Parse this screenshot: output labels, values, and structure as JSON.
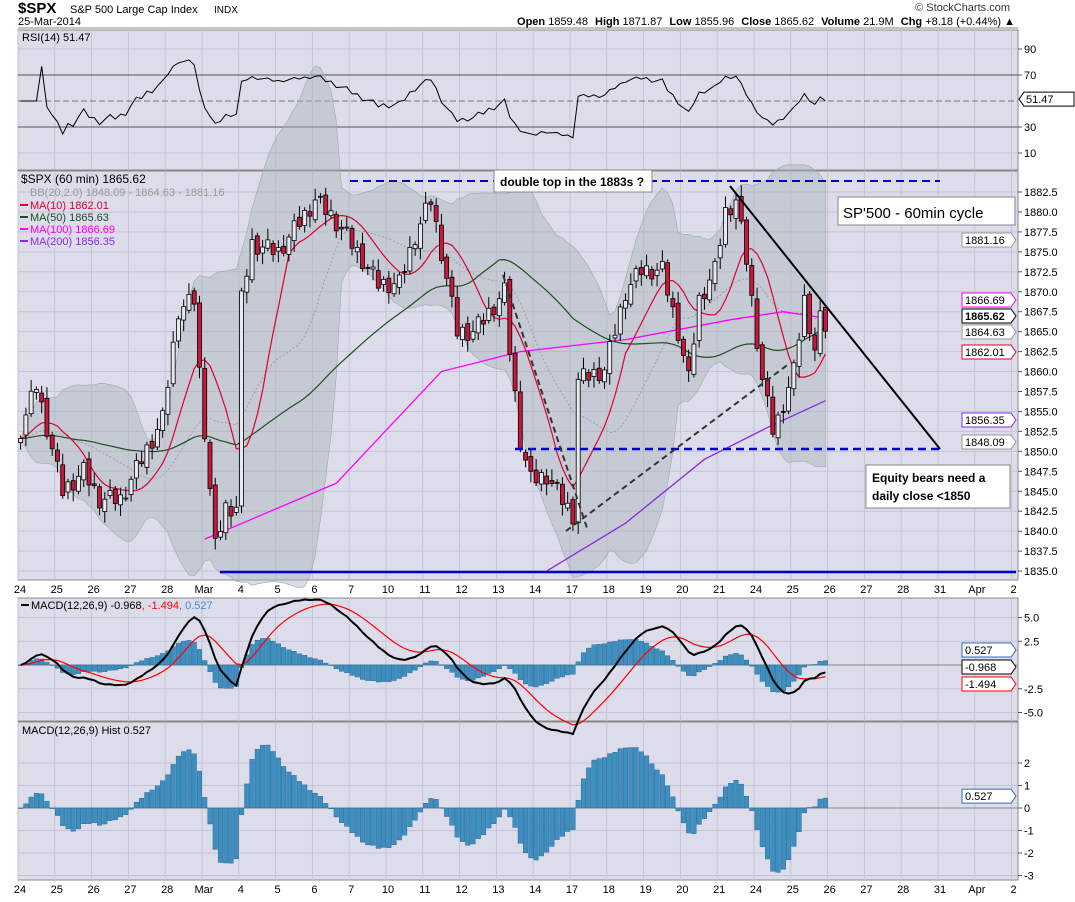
{
  "header": {
    "symbol": "$SPX",
    "name": "S&P 500 Large Cap Index",
    "exchange": "INDX",
    "date": "25-Mar-2014",
    "copyright": "© StockCharts.com",
    "open_label": "Open",
    "open": "1859.48",
    "high_label": "High",
    "high": "1871.87",
    "low_label": "Low",
    "low": "1855.96",
    "close_label": "Close",
    "close": "1865.62",
    "volume_label": "Volume",
    "volume": "21.9M",
    "chg_label": "Chg",
    "chg": "+8.18 (+0.44%)"
  },
  "rsi": {
    "legend": "RSI(14) 51.47",
    "ticks": [
      "90",
      "70",
      "30",
      "10"
    ],
    "tag": "51.47"
  },
  "price": {
    "legend_title": "$SPX (60 min) 1865.62",
    "bb": "BB(20,2.0) 1848.09 - 1864.63 - 1881.16",
    "ma10": "MA(10) 1862.01",
    "ma50": "MA(50) 1865.63",
    "ma100": "MA(100) 1866.69",
    "ma200": "MA(200) 1856.35",
    "ticks": [
      "1882.5",
      "1880.0",
      "1877.5",
      "1875.0",
      "1872.5",
      "1870.0",
      "1867.5",
      "1865.0",
      "1862.5",
      "1860.0",
      "1857.5",
      "1855.0",
      "1852.5",
      "1850.0",
      "1847.5",
      "1845.0",
      "1842.5",
      "1840.0",
      "1837.5",
      "1835.0"
    ],
    "tags": [
      {
        "text": "1881.16",
        "color": "#999999"
      },
      {
        "text": "1866.69",
        "color": "#ff00ff"
      },
      {
        "text": "1865.62",
        "color": "#000000"
      },
      {
        "text": "1864.63",
        "color": "#999999"
      },
      {
        "text": "1862.01",
        "color": "#dd0033"
      },
      {
        "text": "1856.35",
        "color": "#8a2be2"
      },
      {
        "text": "1848.09",
        "color": "#999999"
      }
    ]
  },
  "annotations": {
    "double_top": "double top in the 1883s ?",
    "cycle": "SP'500 - 60min cycle",
    "bears_line1": "Equity bears need a",
    "bears_line2": "daily close <1850"
  },
  "macd": {
    "legend_main": "MACD(12,26,9) -0.968",
    "legend_signal": ", -1.494",
    "legend_hist": ", 0.527",
    "ticks": [
      "5.0",
      "2.5",
      "-2.5",
      "-5.0"
    ],
    "tags": [
      {
        "text": "0.527",
        "color": "#2f6db5"
      },
      {
        "text": "-0.968",
        "color": "#000000"
      },
      {
        "text": "-1.494",
        "color": "#ff0000"
      }
    ]
  },
  "hist": {
    "legend": "MACD(12,26,9) Hist 0.527",
    "ticks": [
      "2",
      "1",
      "0",
      "-1",
      "-2",
      "-3"
    ],
    "tag": "0.527"
  },
  "xaxis": {
    "labels": [
      "24",
      "25",
      "26",
      "27",
      "28",
      "Mar",
      "4",
      "5",
      "6",
      "7",
      "10",
      "11",
      "12",
      "13",
      "14",
      "17",
      "18",
      "19",
      "20",
      "21",
      "24",
      "25",
      "26",
      "27",
      "28",
      "31",
      "Apr",
      "2"
    ]
  },
  "colors": {
    "plot_bg": "#dcdcea",
    "grid": "#c4c4d8",
    "down_candle": "#c8163c",
    "ma10": "#dd0033",
    "ma50": "#1f4f1f",
    "ma100": "#ff00ff",
    "ma200": "#8a2be2",
    "annotation_blue": "#0000cc",
    "hist": "#3d8fc2"
  },
  "chart_data": {
    "type": "candlestick",
    "interval": "60 min",
    "bars_per_day": 7,
    "close_keypoints": [
      [
        0,
        1852.7
      ],
      [
        3,
        1858.3
      ],
      [
        8,
        1845
      ],
      [
        12,
        1847.5
      ],
      [
        15,
        1844
      ],
      [
        19,
        1844
      ],
      [
        27,
        1854
      ],
      [
        30,
        1867.7
      ],
      [
        33,
        1869
      ],
      [
        34,
        1860
      ],
      [
        37,
        1838
      ],
      [
        39,
        1843
      ],
      [
        41,
        1843
      ],
      [
        42,
        1869
      ],
      [
        44,
        1876
      ],
      [
        49,
        1875
      ],
      [
        56,
        1881.5
      ],
      [
        59,
        1879.6
      ],
      [
        62,
        1877
      ],
      [
        68,
        1871
      ],
      [
        72,
        1871
      ],
      [
        75,
        1877
      ],
      [
        78,
        1881.5
      ],
      [
        80,
        1875
      ],
      [
        83,
        1865
      ],
      [
        86,
        1865
      ],
      [
        88,
        1866.5
      ],
      [
        92,
        1870
      ],
      [
        93,
        1862.7
      ],
      [
        95,
        1851.4
      ],
      [
        97,
        1846.4
      ],
      [
        100,
        1847
      ],
      [
        103,
        1843.9
      ],
      [
        105,
        1842
      ],
      [
        106,
        1859
      ],
      [
        111,
        1860.2
      ],
      [
        115,
        1870
      ],
      [
        118,
        1872.7
      ],
      [
        122,
        1872.7
      ],
      [
        125,
        1865
      ],
      [
        127,
        1859
      ],
      [
        129,
        1869
      ],
      [
        132,
        1872.7
      ],
      [
        134,
        1880
      ],
      [
        136,
        1881.5
      ],
      [
        138,
        1874
      ],
      [
        139,
        1869
      ],
      [
        141,
        1859
      ],
      [
        143,
        1852.7
      ],
      [
        144,
        1854
      ],
      [
        147,
        1860
      ],
      [
        149,
        1869
      ],
      [
        151,
        1862.7
      ],
      [
        152,
        1866.5
      ],
      [
        153,
        1865.6
      ]
    ],
    "ma100_keypoints": [
      [
        35,
        1839
      ],
      [
        60,
        1846
      ],
      [
        80,
        1860
      ],
      [
        95,
        1862.5
      ],
      [
        115,
        1864
      ],
      [
        135,
        1866.5
      ],
      [
        145,
        1867.5
      ],
      [
        153,
        1866.7
      ]
    ],
    "ma200_keypoints": [
      [
        100,
        1835
      ],
      [
        115,
        1841
      ],
      [
        130,
        1849
      ],
      [
        142,
        1853
      ],
      [
        153,
        1856.35
      ]
    ],
    "price_ylim": [
      1833.5,
      1884.5
    ],
    "rsi_ylim": [
      0,
      100
    ],
    "macd_ylim": [
      -7,
      7
    ],
    "hist_ylim": [
      -3.2,
      3.2
    ]
  }
}
